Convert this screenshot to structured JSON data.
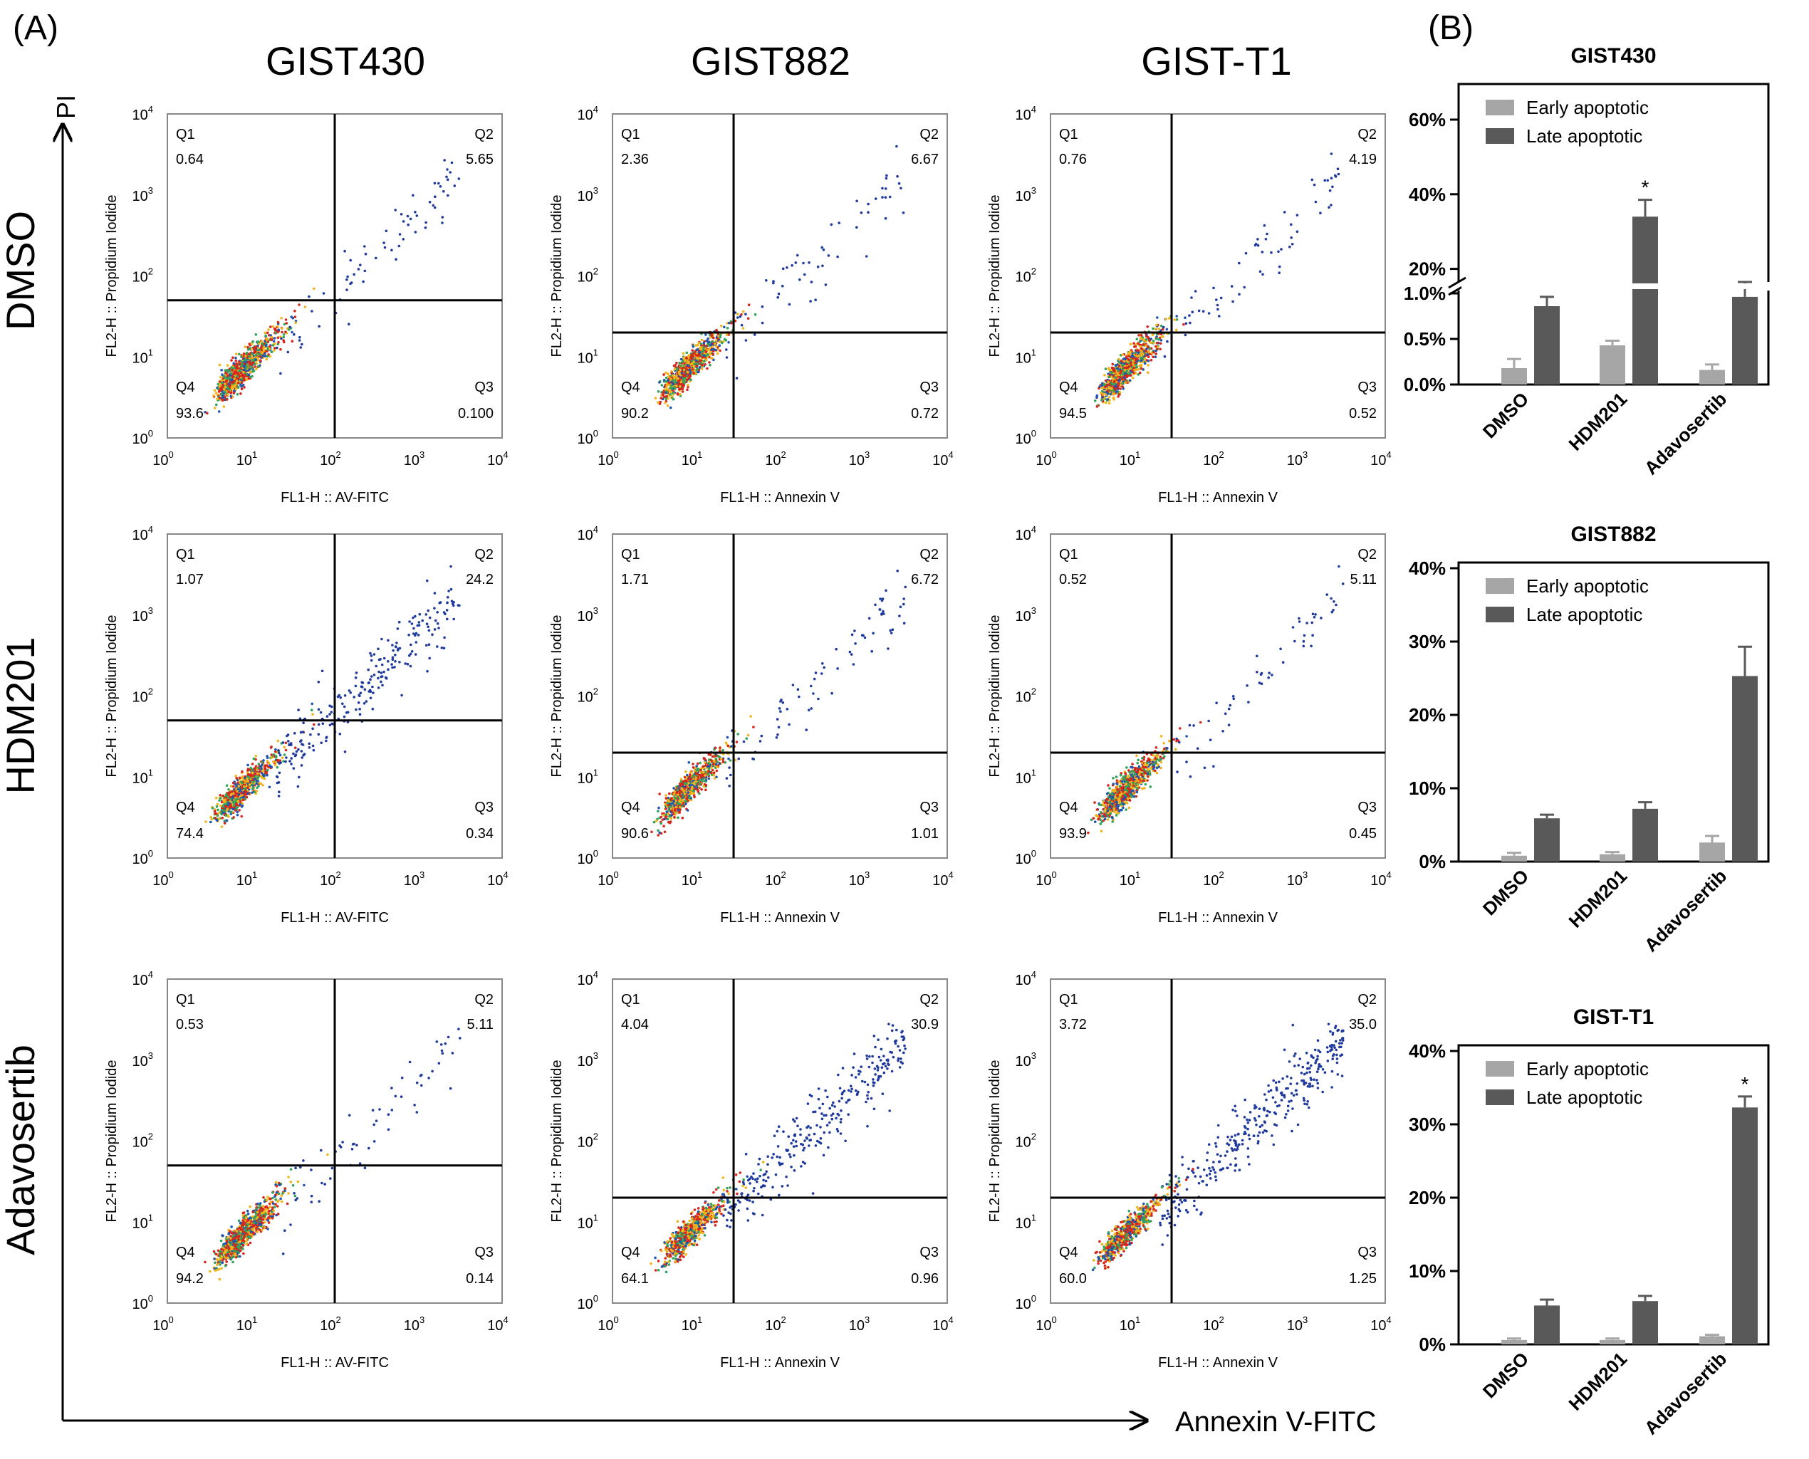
{
  "panels": {
    "a_label": "(A)",
    "b_label": "(B)",
    "y_axis_label": "PI",
    "x_axis_label": "Annexin V-FITC"
  },
  "columns": [
    "GIST430",
    "GIST882",
    "GIST-T1"
  ],
  "rows": [
    "DMSO",
    "HDM201",
    "Adavosertib"
  ],
  "flow_axis": {
    "ticks": [
      "10",
      "10",
      "10",
      "10",
      "10"
    ],
    "exponents": [
      "0",
      "1",
      "2",
      "3",
      "4"
    ],
    "y_label": "FL2-H :: Propidium Iodide"
  },
  "chart_data": [
    {
      "type": "scatter",
      "title": "Flow cytometry Annexin V / PI quadrant plots",
      "x_scale": "log",
      "y_scale": "log",
      "xlim": [
        1,
        10000
      ],
      "ylim": [
        1,
        10000
      ],
      "quadrant_labels": [
        "Q1",
        "Q2",
        "Q3",
        "Q4"
      ],
      "plots": [
        {
          "row": "DMSO",
          "cell_line": "GIST430",
          "xlabel": "FL1-H :: AV-FITC",
          "gate_x": 100,
          "gate_y": 50,
          "q1": "0.64",
          "q2": "5.65",
          "q3": "0.100",
          "q4": "93.6"
        },
        {
          "row": "DMSO",
          "cell_line": "GIST882",
          "xlabel": "FL1-H :: Annexin V",
          "gate_x": 28,
          "gate_y": 20,
          "q1": "2.36",
          "q2": "6.67",
          "q3": "0.72",
          "q4": "90.2"
        },
        {
          "row": "DMSO",
          "cell_line": "GIST-T1",
          "xlabel": "FL1-H :: Annexin V",
          "gate_x": 28,
          "gate_y": 20,
          "q1": "0.76",
          "q2": "4.19",
          "q3": "0.52",
          "q4": "94.5"
        },
        {
          "row": "HDM201",
          "cell_line": "GIST430",
          "xlabel": "FL1-H :: AV-FITC",
          "gate_x": 100,
          "gate_y": 50,
          "q1": "1.07",
          "q2": "24.2",
          "q3": "0.34",
          "q4": "74.4"
        },
        {
          "row": "HDM201",
          "cell_line": "GIST882",
          "xlabel": "FL1-H :: Annexin V",
          "gate_x": 28,
          "gate_y": 20,
          "q1": "1.71",
          "q2": "6.72",
          "q3": "1.01",
          "q4": "90.6"
        },
        {
          "row": "HDM201",
          "cell_line": "GIST-T1",
          "xlabel": "FL1-H :: Annexin V",
          "gate_x": 28,
          "gate_y": 20,
          "q1": "0.52",
          "q2": "5.11",
          "q3": "0.45",
          "q4": "93.9"
        },
        {
          "row": "Adavosertib",
          "cell_line": "GIST430",
          "xlabel": "FL1-H :: AV-FITC",
          "gate_x": 100,
          "gate_y": 50,
          "q1": "0.53",
          "q2": "5.11",
          "q3": "0.14",
          "q4": "94.2"
        },
        {
          "row": "Adavosertib",
          "cell_line": "GIST882",
          "xlabel": "FL1-H :: Annexin V",
          "gate_x": 28,
          "gate_y": 20,
          "q1": "4.04",
          "q2": "30.9",
          "q3": "0.96",
          "q4": "64.1"
        },
        {
          "row": "Adavosertib",
          "cell_line": "GIST-T1",
          "xlabel": "FL1-H :: Annexin V",
          "gate_x": 28,
          "gate_y": 20,
          "q1": "3.72",
          "q2": "35.0",
          "q3": "1.25",
          "q4": "60.0"
        }
      ]
    },
    {
      "type": "bar",
      "title": "GIST430",
      "categories": [
        "DMSO",
        "HDM201",
        "Adavosertib"
      ],
      "axis_break": true,
      "lower_ticks": [
        "0.0%",
        "0.5%",
        "1.0%"
      ],
      "upper_ticks": [
        "20%",
        "40%",
        "60%"
      ],
      "series": [
        {
          "name": "Early apoptotic",
          "color": "#a6a6a6",
          "values": [
            0.18,
            0.43,
            0.16
          ],
          "errors": [
            0.1,
            0.05,
            0.06
          ]
        },
        {
          "name": "Late apoptotic",
          "color": "#595959",
          "values": [
            10,
            34,
            12.5
          ],
          "errors": [
            2.5,
            4.5,
            4
          ]
        }
      ],
      "significance": [
        "",
        "*",
        ""
      ],
      "significance_series": "Late apoptotic"
    },
    {
      "type": "bar",
      "title": "GIST882",
      "categories": [
        "DMSO",
        "HDM201",
        "Adavosertib"
      ],
      "ylim": [
        0,
        40
      ],
      "ticks": [
        "0%",
        "10%",
        "20%",
        "30%",
        "40%"
      ],
      "series": [
        {
          "name": "Early apoptotic",
          "color": "#a6a6a6",
          "values": [
            0.8,
            1.0,
            2.6
          ],
          "errors": [
            0.4,
            0.3,
            0.9
          ]
        },
        {
          "name": "Late apoptotic",
          "color": "#595959",
          "values": [
            5.9,
            7.2,
            25.3
          ],
          "errors": [
            0.5,
            0.9,
            4.0
          ]
        }
      ],
      "significance": [
        "",
        "",
        ""
      ],
      "significance_series": "Late apoptotic"
    },
    {
      "type": "bar",
      "title": "GIST-T1",
      "categories": [
        "DMSO",
        "HDM201",
        "Adavosertib"
      ],
      "ylim": [
        0,
        40
      ],
      "ticks": [
        "0%",
        "10%",
        "20%",
        "30%",
        "40%"
      ],
      "series": [
        {
          "name": "Early apoptotic",
          "color": "#a6a6a6",
          "values": [
            0.6,
            0.6,
            1.1
          ],
          "errors": [
            0.2,
            0.2,
            0.2
          ]
        },
        {
          "name": "Late apoptotic",
          "color": "#595959",
          "values": [
            5.3,
            5.9,
            32.3
          ],
          "errors": [
            0.8,
            0.7,
            1.5
          ]
        }
      ],
      "significance": [
        "",
        "",
        "*"
      ],
      "significance_series": "Late apoptotic"
    }
  ]
}
